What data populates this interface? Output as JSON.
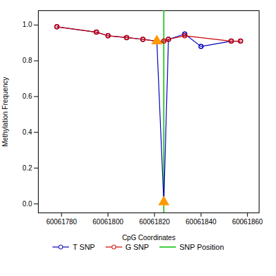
{
  "chart_data": {
    "type": "line",
    "xlabel": "CpG Coordinates",
    "ylabel": "Methylation Frequency",
    "xlim": [
      60061770,
      60061865
    ],
    "ylim": [
      -0.05,
      1.08
    ],
    "xticks": [
      60061780,
      60061800,
      60061820,
      60061840,
      60061860
    ],
    "yticks": [
      {
        "value": 0.0,
        "label": "0.0"
      },
      0.2,
      0.4,
      0.6,
      0.8,
      {
        "value": 1.0,
        "label": "1.0"
      }
    ],
    "grid": false,
    "legend": "bottom",
    "series": [
      {
        "name": "T SNP",
        "type": "line",
        "marker": "circle",
        "color": "#0000bb",
        "x": [
          60061778,
          60061795,
          60061800,
          60061808,
          60061815,
          60061821,
          60061824,
          60061826,
          60061833,
          60061840,
          60061853,
          60061857
        ],
        "values": [
          0.99,
          0.96,
          0.94,
          0.93,
          0.92,
          0.91,
          0.01,
          0.92,
          0.95,
          0.88,
          0.91,
          0.91
        ]
      },
      {
        "name": "G SNP",
        "type": "line",
        "marker": "circle",
        "color": "#cc0000",
        "x": [
          60061778,
          60061795,
          60061800,
          60061808,
          60061815,
          60061821,
          60061824,
          60061826,
          60061833,
          60061853,
          60061857
        ],
        "values": [
          0.99,
          0.96,
          0.94,
          0.93,
          0.92,
          0.91,
          0.91,
          0.92,
          0.94,
          0.91,
          0.91
        ]
      },
      {
        "name": "SNP Position",
        "type": "vline",
        "color": "#00bb00",
        "x": [
          60061824
        ]
      },
      {
        "type": "scatter",
        "marker": "triangle",
        "color": "#ff9900",
        "x": [
          60061821,
          60061824
        ],
        "values": [
          0.91,
          0.01
        ]
      }
    ]
  }
}
